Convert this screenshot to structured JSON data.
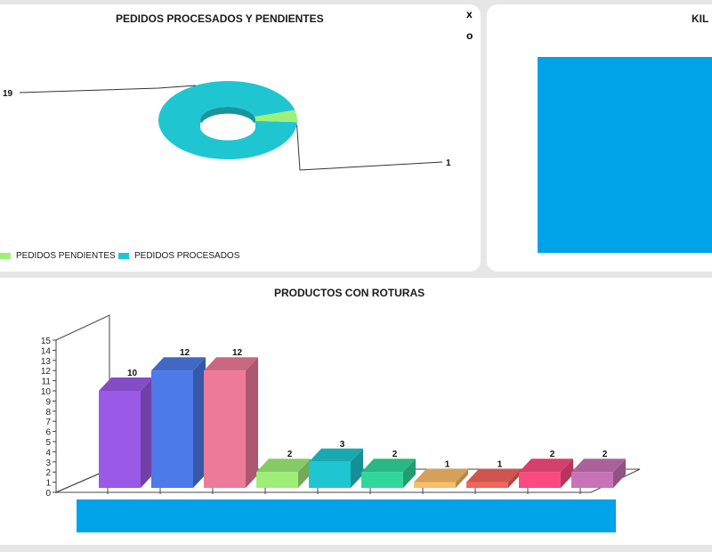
{
  "pie_panel": {
    "title": "PEDIDOS PROCESADOS Y PENDIENTES",
    "close_label": "x",
    "restore_label": "o",
    "legend": [
      {
        "label": "PEDIDOS PENDIENTES",
        "color": "#9ff07a"
      },
      {
        "label": "PEDIDOS PROCESADOS",
        "color": "#1fc6d2"
      }
    ]
  },
  "kilos_panel": {
    "title": "KIL"
  },
  "bar_panel": {
    "title": "PRODUCTOS CON ROTURAS"
  },
  "chart_data": [
    {
      "type": "pie",
      "variant": "3d-doughnut",
      "title": "PEDIDOS PROCESADOS Y PENDIENTES",
      "slices": [
        {
          "label": "PEDIDOS PENDIENTES",
          "value": 1,
          "color": "#9ff07a"
        },
        {
          "label": "PEDIDOS PROCESADOS",
          "value": 19,
          "color": "#1fc6d2"
        }
      ],
      "legend_position": "bottom-left"
    },
    {
      "type": "bar",
      "variant": "3d",
      "title": "PRODUCTOS CON ROTURAS",
      "values": [
        10,
        12,
        12,
        2,
        3,
        2,
        1,
        1,
        2,
        2
      ],
      "colors": [
        "#9b59e8",
        "#4d7ae8",
        "#ee7a99",
        "#9eee78",
        "#1fc6d2",
        "#2fd89a",
        "#fbbd6a",
        "#f4645a",
        "#fb4a80",
        "#c873b8"
      ],
      "ylim": [
        0,
        15
      ],
      "yticks": [
        0,
        1,
        2,
        3,
        4,
        5,
        6,
        7,
        8,
        9,
        10,
        11,
        12,
        13,
        14,
        15
      ],
      "grid": false
    }
  ]
}
